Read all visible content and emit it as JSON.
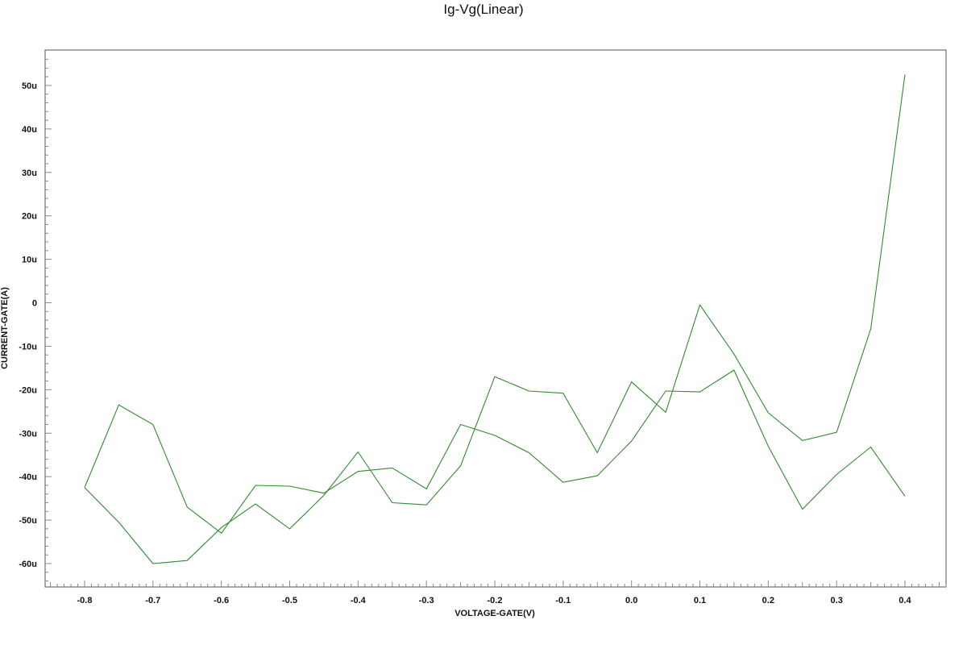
{
  "chart_data": {
    "type": "line",
    "title": "Ig-Vg(Linear)",
    "xlabel": "VOLTAGE-GATE(V)",
    "ylabel": "CURRENT-GATE(A)",
    "xlim": [
      -0.86,
      0.46
    ],
    "ylim": [
      -65,
      58
    ],
    "x_ticks": [
      -0.8,
      -0.7,
      -0.6,
      -0.5,
      -0.4,
      -0.3,
      -0.2,
      -0.1,
      0.0,
      0.1,
      0.2,
      0.3,
      0.4
    ],
    "x_tick_labels": [
      "-0.8",
      "-0.7",
      "-0.6",
      "-0.5",
      "-0.4",
      "-0.3",
      "-0.2",
      "-0.1",
      "0.0",
      "0.1",
      "0.2",
      "0.3",
      "0.4"
    ],
    "y_ticks": [
      50,
      40,
      30,
      20,
      10,
      0,
      -10,
      -20,
      -30,
      -40,
      -50,
      -60
    ],
    "y_tick_labels": [
      "50u",
      "40u",
      "30u",
      "20u",
      "10u",
      "0",
      "-10u",
      "-20u",
      "-30u",
      "-40u",
      "-50u",
      "-60u"
    ],
    "y_unit": "uA",
    "grid": false,
    "series": [
      {
        "color": "#2e8b2e",
        "x": [
          -0.8,
          -0.75,
          -0.7,
          -0.65,
          -0.6,
          -0.55,
          -0.5,
          -0.45,
          -0.4,
          -0.35,
          -0.3,
          -0.25,
          -0.2,
          -0.15,
          -0.1,
          -0.05,
          0.0,
          0.05,
          0.1,
          0.15,
          0.2,
          0.25,
          0.3,
          0.35,
          0.4
        ],
        "values": [
          -42.5,
          -23.5,
          -28.0,
          -47.0,
          -53.0,
          -42.0,
          -42.2,
          -43.8,
          -38.8,
          -38.0,
          -42.8,
          -28.0,
          -30.5,
          -34.5,
          -41.3,
          -39.8,
          -31.8,
          -20.3,
          -20.5,
          -15.5,
          -33.0,
          -47.5,
          -39.5,
          -33.2,
          -44.5
        ]
      },
      {
        "color": "#2e8b2e",
        "x": [
          -0.8,
          -0.75,
          -0.7,
          -0.65,
          -0.6,
          -0.55,
          -0.5,
          -0.45,
          -0.4,
          -0.35,
          -0.3,
          -0.25,
          -0.2,
          -0.15,
          -0.1,
          -0.05,
          0.0,
          0.05,
          0.1,
          0.15,
          0.2,
          0.25,
          0.3,
          0.35,
          0.4
        ],
        "values": [
          -42.5,
          -50.5,
          -60.0,
          -59.3,
          -51.7,
          -46.3,
          -52.0,
          -44.3,
          -34.3,
          -46.0,
          -46.5,
          -37.5,
          -17.0,
          -20.3,
          -20.8,
          -34.5,
          -18.2,
          -25.2,
          -0.5,
          -11.8,
          -25.3,
          -31.7,
          -29.8,
          -6.0,
          52.5
        ]
      }
    ]
  }
}
